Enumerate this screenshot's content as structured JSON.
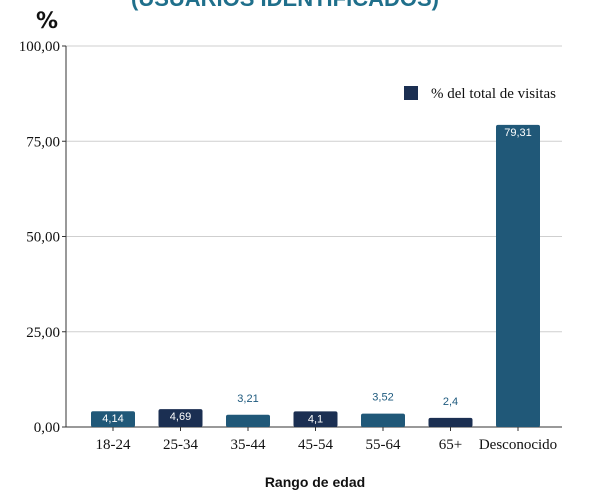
{
  "chart_data": {
    "type": "bar",
    "title": "(USUARIOS IDENTIFICADOS)",
    "ylabel": "%",
    "xlabel": "Rango de edad",
    "categories": [
      "18-24",
      "25-34",
      "35-44",
      "45-54",
      "55-64",
      "65+",
      "Desconocido"
    ],
    "series": [
      {
        "name": "% del total de visitas",
        "values": [
          4.14,
          4.69,
          3.21,
          4.1,
          3.52,
          2.4,
          79.31
        ],
        "labels": [
          "4,14",
          "4,69",
          "3,21",
          "4,1",
          "3,52",
          "2,4",
          "79,31"
        ]
      }
    ],
    "bar_colors": [
      "#205878",
      "#1b2f52",
      "#205878",
      "#1b2f52",
      "#205878",
      "#1b2f52",
      "#205878"
    ],
    "ylim": [
      0,
      100
    ],
    "yticks": [
      0,
      25,
      50,
      75,
      100
    ],
    "ytick_labels": [
      "0,00",
      "25,00",
      "50,00",
      "75,00",
      "100,00"
    ],
    "grid": true,
    "legend": {
      "position": "top-right",
      "color": "#1b2f52"
    }
  }
}
